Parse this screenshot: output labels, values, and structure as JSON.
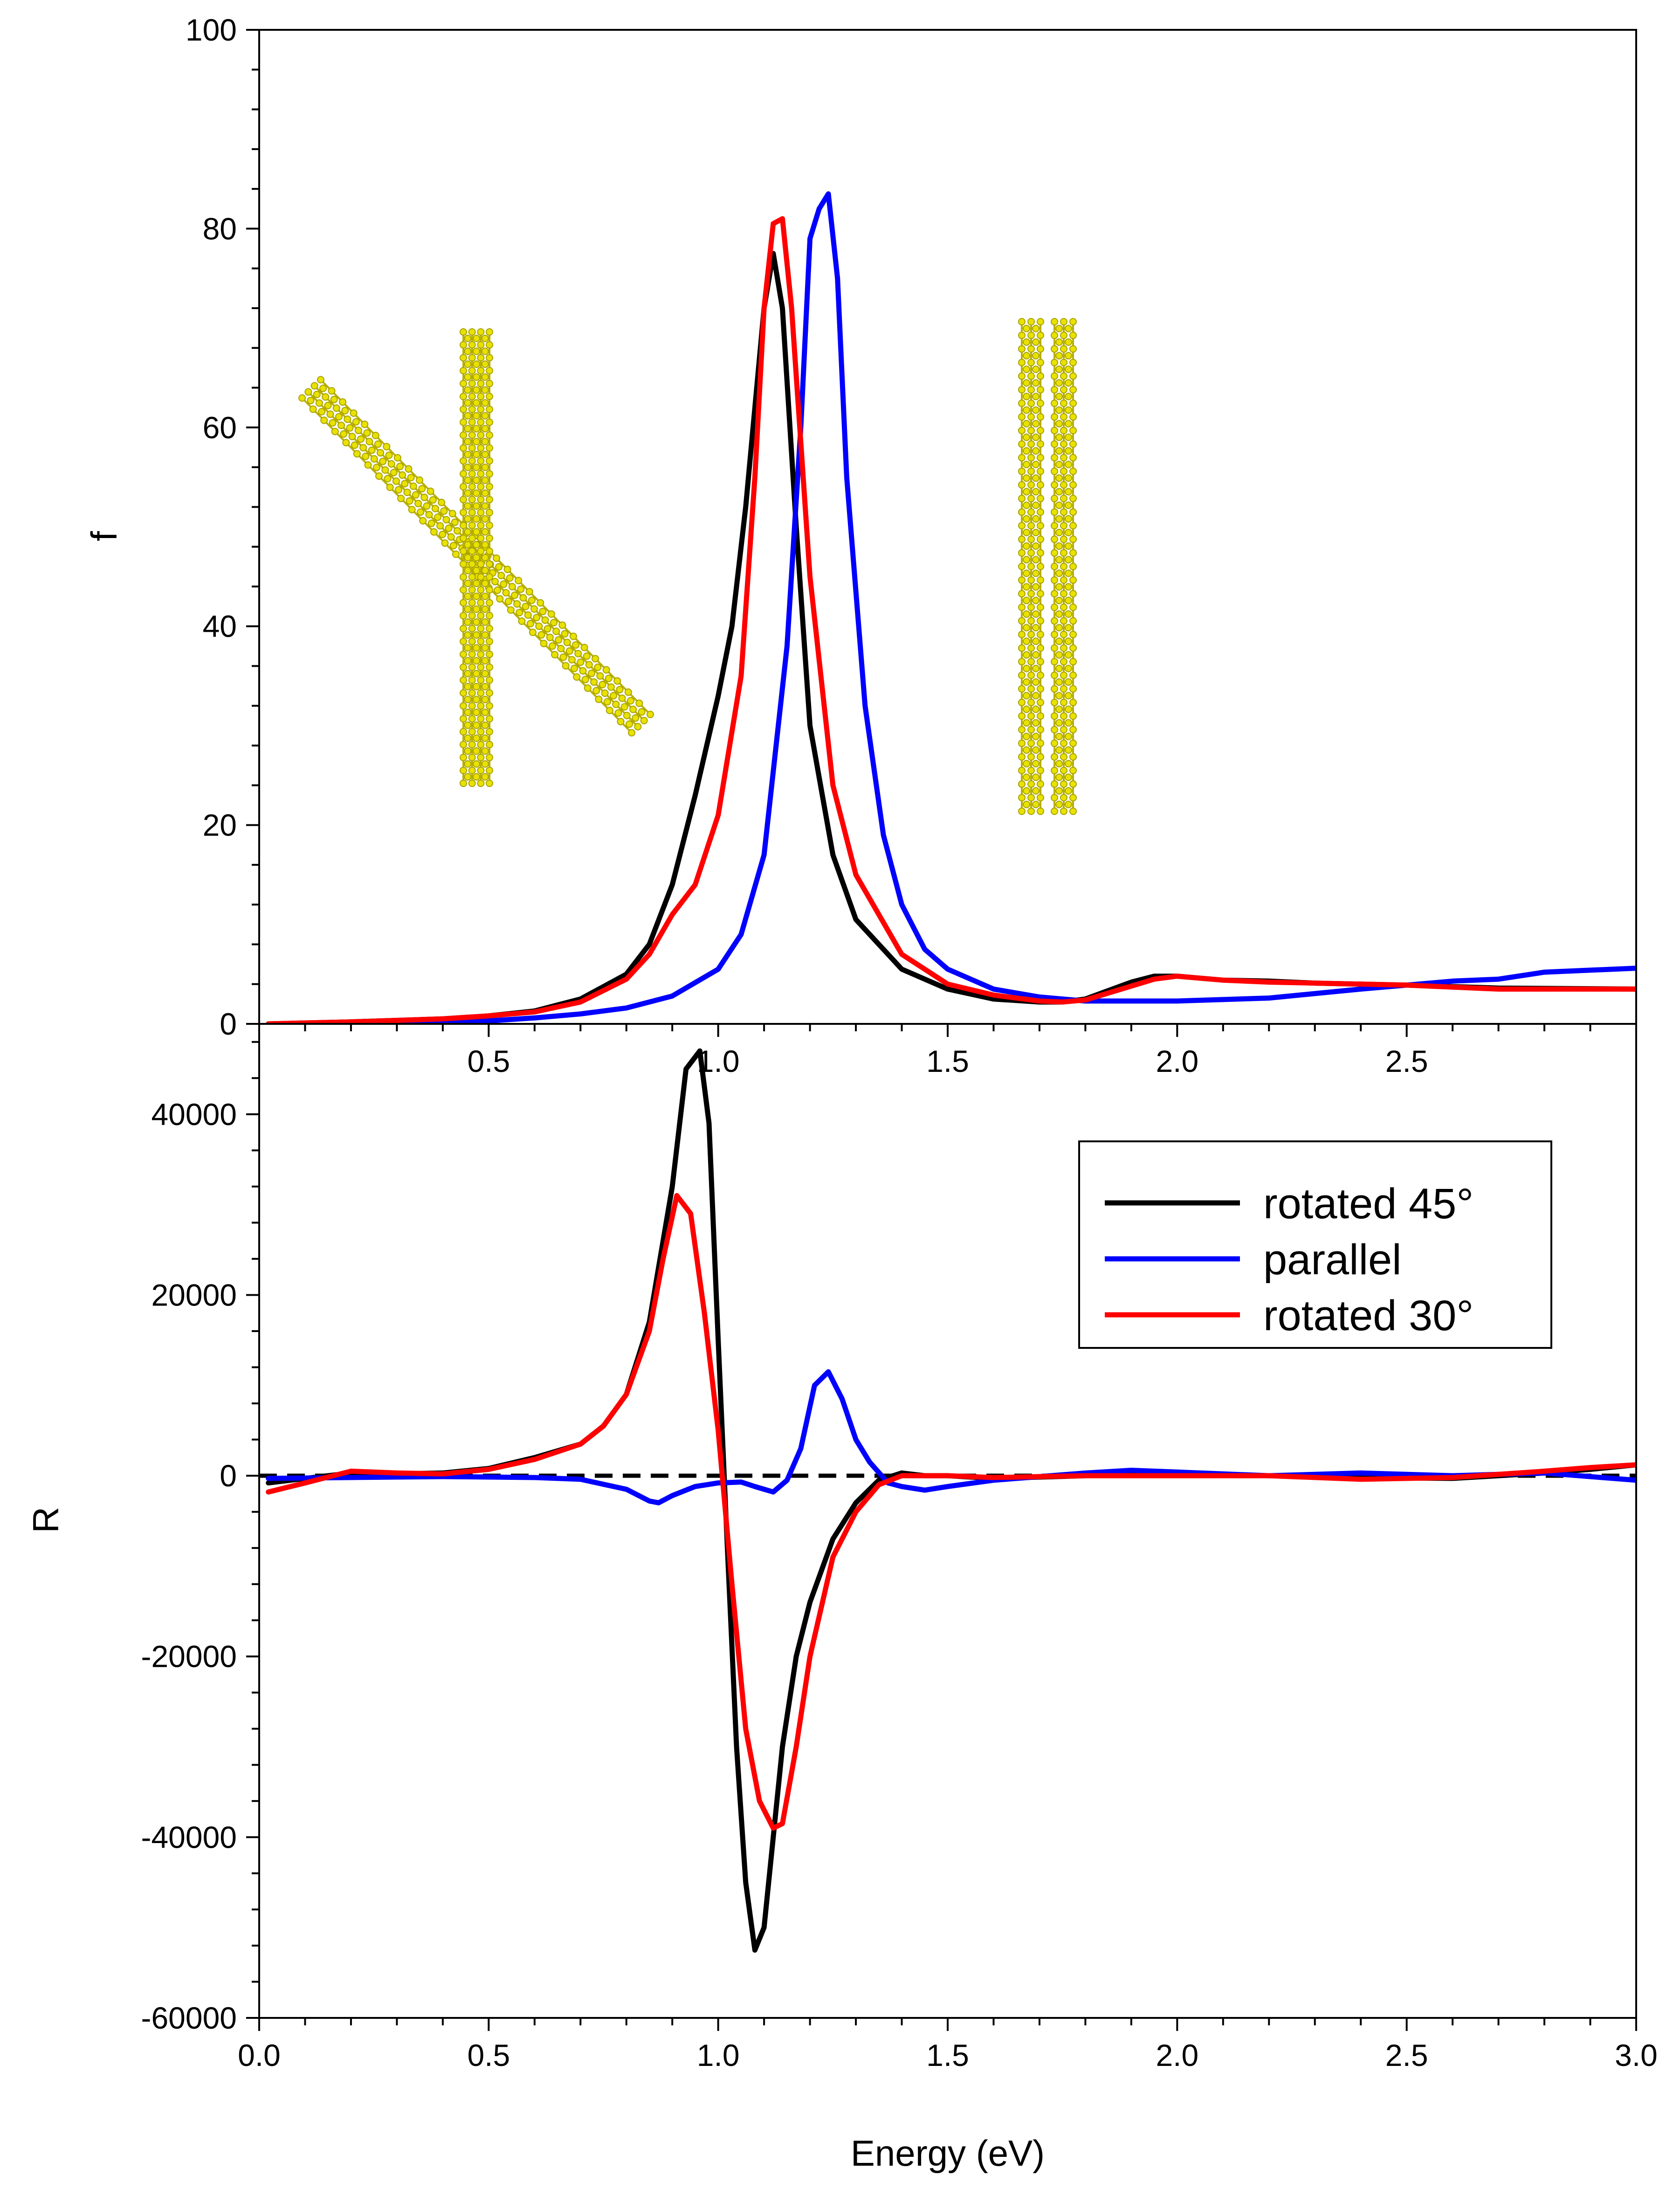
{
  "chart_data": [
    {
      "panel": "top",
      "type": "line",
      "title": "",
      "xlabel": "",
      "ylabel": "f",
      "xlim": [
        0,
        3.0
      ],
      "ylim": [
        0,
        100
      ],
      "x_ticks": [
        "0.5",
        "1.0",
        "1.5",
        "2.0",
        "2.5"
      ],
      "x_tick_values": [
        0.5,
        1.0,
        1.5,
        2.0,
        2.5
      ],
      "y_ticks": [
        "0",
        "20",
        "40",
        "60",
        "80",
        "100"
      ],
      "y_tick_values": [
        0,
        20,
        40,
        60,
        80,
        100
      ],
      "series": [
        {
          "name": "rotated 45°",
          "color": "#000000",
          "x": [
            0.02,
            0.2,
            0.4,
            0.5,
            0.6,
            0.7,
            0.8,
            0.85,
            0.9,
            0.95,
            1.0,
            1.03,
            1.06,
            1.08,
            1.1,
            1.12,
            1.14,
            1.17,
            1.2,
            1.25,
            1.3,
            1.4,
            1.5,
            1.6,
            1.7,
            1.75,
            1.8,
            1.9,
            1.95,
            2.0,
            2.1,
            2.2,
            2.3,
            2.4,
            2.5,
            2.7,
            3.0
          ],
          "y": [
            0,
            0.2,
            0.5,
            0.8,
            1.3,
            2.5,
            5.0,
            8.0,
            14.0,
            23.0,
            33.0,
            40.0,
            52.0,
            62.0,
            72.0,
            77.5,
            72.0,
            50.0,
            30.0,
            17.0,
            10.5,
            5.5,
            3.5,
            2.5,
            2.2,
            2.2,
            2.5,
            4.2,
            4.8,
            4.8,
            4.4,
            4.3,
            4.1,
            4.0,
            3.9,
            3.6,
            3.5
          ]
        },
        {
          "name": "parallel",
          "color": "#0000ff",
          "x": [
            0.02,
            0.3,
            0.5,
            0.6,
            0.7,
            0.8,
            0.9,
            1.0,
            1.05,
            1.1,
            1.15,
            1.18,
            1.2,
            1.22,
            1.24,
            1.26,
            1.28,
            1.32,
            1.36,
            1.4,
            1.45,
            1.5,
            1.6,
            1.7,
            1.8,
            2.0,
            2.2,
            2.4,
            2.6,
            2.7,
            2.8,
            3.0
          ],
          "y": [
            0,
            0.1,
            0.3,
            0.6,
            1.0,
            1.6,
            2.8,
            5.5,
            9.0,
            17.0,
            38.0,
            60.0,
            79.0,
            82.0,
            83.5,
            75.0,
            55.0,
            32.0,
            19.0,
            12.0,
            7.5,
            5.5,
            3.5,
            2.7,
            2.3,
            2.3,
            2.6,
            3.5,
            4.3,
            4.5,
            5.2,
            5.6
          ]
        },
        {
          "name": "rotated 30°",
          "color": "#ff0000",
          "x": [
            0.02,
            0.2,
            0.4,
            0.5,
            0.6,
            0.7,
            0.8,
            0.85,
            0.9,
            0.95,
            1.0,
            1.05,
            1.08,
            1.1,
            1.12,
            1.14,
            1.16,
            1.2,
            1.25,
            1.3,
            1.4,
            1.5,
            1.6,
            1.7,
            1.75,
            1.8,
            1.9,
            1.95,
            2.0,
            2.1,
            2.2,
            2.4,
            2.5,
            2.7,
            3.0
          ],
          "y": [
            0,
            0.2,
            0.5,
            0.8,
            1.2,
            2.2,
            4.5,
            7.0,
            11.0,
            14.0,
            21.0,
            35.0,
            55.0,
            72.0,
            80.5,
            81.0,
            72.0,
            45.0,
            24.0,
            15.0,
            7.0,
            4.0,
            2.9,
            2.3,
            2.2,
            2.4,
            3.8,
            4.5,
            4.8,
            4.4,
            4.2,
            4.0,
            3.9,
            3.5,
            3.5
          ]
        }
      ],
      "annotations": [
        "crossed nanotube structure (inset, yellow)",
        "parallel nanotube structure (inset, yellow)"
      ]
    },
    {
      "panel": "bottom",
      "type": "line",
      "title": "",
      "xlabel": "Energy (eV)",
      "ylabel": "R",
      "xlim": [
        0,
        3.0
      ],
      "ylim": [
        -60000,
        50000
      ],
      "x_ticks": [
        "0.0",
        "0.5",
        "1.0",
        "1.5",
        "2.0",
        "2.5",
        "3.0"
      ],
      "x_tick_values": [
        0.0,
        0.5,
        1.0,
        1.5,
        2.0,
        2.5,
        3.0
      ],
      "y_ticks": [
        "-60000",
        "-40000",
        "-20000",
        "0",
        "20000",
        "40000"
      ],
      "y_tick_values": [
        -60000,
        -40000,
        -20000,
        0,
        20000,
        40000
      ],
      "reference_line": {
        "y": 0,
        "style": "dashed",
        "color": "#000000"
      },
      "series": [
        {
          "name": "rotated 45°",
          "color": "#000000",
          "x": [
            0.02,
            0.1,
            0.2,
            0.3,
            0.4,
            0.5,
            0.6,
            0.7,
            0.75,
            0.8,
            0.85,
            0.9,
            0.93,
            0.96,
            0.98,
            1.0,
            1.02,
            1.04,
            1.06,
            1.08,
            1.1,
            1.12,
            1.14,
            1.17,
            1.2,
            1.25,
            1.3,
            1.35,
            1.4,
            1.45,
            1.5,
            1.6,
            1.8,
            2.0,
            2.2,
            2.4,
            2.6,
            2.8,
            2.9,
            3.0
          ],
          "y": [
            -800,
            -300,
            300,
            200,
            300,
            800,
            2000,
            3500,
            5500,
            9000,
            17000,
            32000,
            45000,
            47000,
            39000,
            15000,
            -8000,
            -30000,
            -45000,
            -52500,
            -50000,
            -40000,
            -30000,
            -20000,
            -14000,
            -7000,
            -3000,
            -500,
            300,
            0,
            0,
            -300,
            0,
            200,
            0,
            -200,
            -300,
            300,
            700,
            1200
          ]
        },
        {
          "name": "parallel",
          "color": "#0000ff",
          "x": [
            0.02,
            0.2,
            0.4,
            0.6,
            0.7,
            0.8,
            0.85,
            0.87,
            0.9,
            0.95,
            1.0,
            1.05,
            1.08,
            1.12,
            1.15,
            1.18,
            1.21,
            1.24,
            1.27,
            1.3,
            1.33,
            1.37,
            1.4,
            1.45,
            1.5,
            1.6,
            1.8,
            1.9,
            2.0,
            2.2,
            2.4,
            2.6,
            2.8,
            3.0
          ],
          "y": [
            -300,
            -200,
            -100,
            -200,
            -400,
            -1500,
            -2800,
            -3000,
            -2200,
            -1200,
            -800,
            -700,
            -1200,
            -1800,
            -500,
            3000,
            10000,
            11500,
            8500,
            4000,
            1500,
            -800,
            -1200,
            -1600,
            -1200,
            -500,
            300,
            600,
            400,
            0,
            300,
            0,
            300,
            -500
          ]
        },
        {
          "name": "rotated 30°",
          "color": "#ff0000",
          "x": [
            0.02,
            0.1,
            0.2,
            0.3,
            0.4,
            0.5,
            0.6,
            0.7,
            0.75,
            0.8,
            0.85,
            0.88,
            0.91,
            0.94,
            0.97,
            1.0,
            1.03,
            1.06,
            1.09,
            1.12,
            1.14,
            1.17,
            1.2,
            1.25,
            1.3,
            1.35,
            1.4,
            1.5,
            1.6,
            1.8,
            2.0,
            2.2,
            2.4,
            2.6,
            2.8,
            2.9,
            3.0
          ],
          "y": [
            -1800,
            -800,
            500,
            300,
            200,
            700,
            1800,
            3500,
            5500,
            9000,
            16000,
            24000,
            31000,
            29000,
            18000,
            5000,
            -12000,
            -28000,
            -36000,
            -39000,
            -38500,
            -30000,
            -20000,
            -9000,
            -4000,
            -1000,
            0,
            0,
            -200,
            0,
            0,
            0,
            -400,
            -200,
            500,
            900,
            1200
          ]
        }
      ],
      "legend": {
        "position": "upper-right",
        "entries": [
          "rotated 45°",
          "parallel",
          "rotated 30°"
        ]
      }
    }
  ]
}
